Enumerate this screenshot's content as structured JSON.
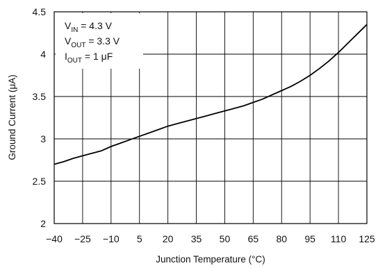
{
  "chart_data": {
    "type": "line",
    "xlabel": "Junction Temperature (°C)",
    "ylabel": "Ground Current (μA)",
    "xlim": [
      -40,
      125
    ],
    "ylim": [
      2,
      4.5
    ],
    "x_ticks": [
      -40,
      -25,
      -10,
      5,
      20,
      35,
      50,
      65,
      80,
      95,
      110,
      125
    ],
    "x_tick_labels": [
      "−40",
      "−25",
      "−10",
      "5",
      "20",
      "35",
      "50",
      "65",
      "80",
      "95",
      "110",
      "125"
    ],
    "y_ticks": [
      2,
      2.5,
      3,
      3.5,
      4,
      4.5
    ],
    "y_tick_labels": [
      "2",
      "2.5",
      "3",
      "3.5",
      "4",
      "4.5"
    ],
    "grid": true,
    "line_color": "#000000",
    "series": [
      {
        "x": [
          -40,
          -35,
          -30,
          -25,
          -20,
          -15,
          -10,
          -5,
          0,
          5,
          10,
          15,
          20,
          25,
          30,
          35,
          40,
          45,
          50,
          55,
          60,
          65,
          70,
          75,
          80,
          85,
          90,
          95,
          100,
          105,
          110,
          115,
          120,
          125
        ],
        "values": [
          2.7,
          2.73,
          2.77,
          2.8,
          2.83,
          2.86,
          2.91,
          2.95,
          2.99,
          3.03,
          3.07,
          3.11,
          3.15,
          3.18,
          3.21,
          3.24,
          3.27,
          3.3,
          3.33,
          3.36,
          3.39,
          3.43,
          3.47,
          3.52,
          3.57,
          3.62,
          3.68,
          3.75,
          3.83,
          3.92,
          4.02,
          4.13,
          4.24,
          4.35
        ]
      }
    ],
    "annotation": {
      "lines": [
        {
          "main": "V",
          "sub": "IN",
          "rest": " = 4.3 V"
        },
        {
          "main": "V",
          "sub": "OUT",
          "rest": " = 3.3 V"
        },
        {
          "main": "I",
          "sub": "OUT",
          "rest": " = 1 μF"
        }
      ]
    }
  }
}
